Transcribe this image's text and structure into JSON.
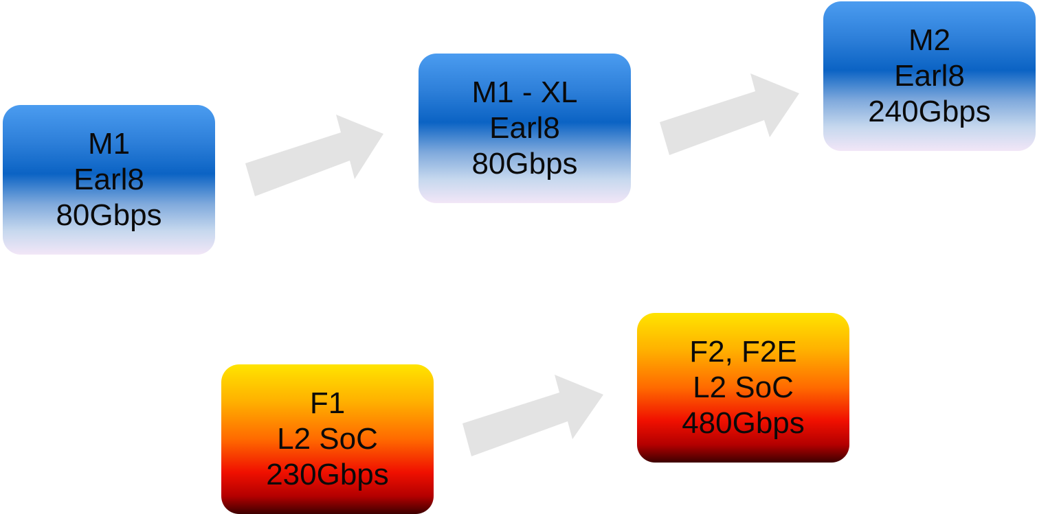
{
  "nodes": {
    "m1": {
      "line1": "M1",
      "line2": "Earl8",
      "line3": "80Gbps"
    },
    "m1xl": {
      "line1": "M1 - XL",
      "line2": "Earl8",
      "line3": "80Gbps"
    },
    "m2": {
      "line1": "M2",
      "line2": "Earl8",
      "line3": "240Gbps"
    },
    "f1": {
      "line1": "F1",
      "line2": "L2 SoC",
      "line3": "230Gbps"
    },
    "f2": {
      "line1": "F2, F2E",
      "line2": "L2 SoC",
      "line3": "480Gbps"
    }
  },
  "edges": [
    {
      "from": "m1",
      "to": "m1xl"
    },
    {
      "from": "m1xl",
      "to": "m2"
    },
    {
      "from": "f1",
      "to": "f2"
    }
  ],
  "colors": {
    "blue_top": "#4b9cf0",
    "blue_mid": "#0b63c4",
    "blue_bottom": "#f2e6f7",
    "fire_top": "#ffe400",
    "fire_mid": "#ff6a00",
    "fire_bottom": "#3d0000",
    "arrow": "#e3e3e3"
  }
}
